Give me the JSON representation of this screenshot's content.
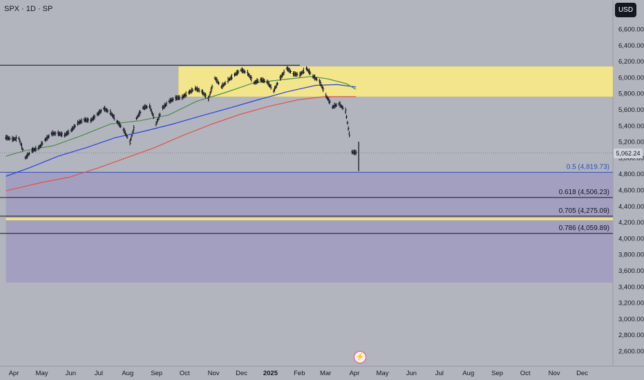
{
  "header": {
    "symbol_title": "SPX · 1D · SP"
  },
  "toolbar": {
    "currency_label": "USD"
  },
  "colors": {
    "background": "#b2b5be",
    "zone_yellow": "#f3e58c",
    "zone_purple": "#a39fc0",
    "sma_green": "#4d8c48",
    "sma_blue": "#2b3fe0",
    "sma_red": "#e2524d",
    "fib_blue": "#2f4fb5",
    "candle": "#131722"
  },
  "chart_data": {
    "type": "line",
    "title": "SPX · 1D · SP",
    "ylim": [
      2450,
      6900
    ],
    "y_ticks": [
      "6,600.00",
      "6,400.00",
      "6,200.00",
      "6,000.00",
      "5,800.00",
      "5,600.00",
      "5,400.00",
      "5,200.00",
      "5,000.00",
      "4,800.00",
      "4,600.00",
      "4,400.00",
      "4,200.00",
      "4,000.00",
      "3,800.00",
      "3,600.00",
      "3,400.00",
      "3,200.00",
      "3,000.00",
      "2,800.00",
      "2,600.00"
    ],
    "x_ticks": [
      {
        "label": "Apr",
        "bold": false,
        "date": "2024-04-01"
      },
      {
        "label": "May",
        "bold": false,
        "date": "2024-05-01"
      },
      {
        "label": "Jun",
        "bold": false,
        "date": "2024-06-01"
      },
      {
        "label": "Jul",
        "bold": false,
        "date": "2024-07-01"
      },
      {
        "label": "Aug",
        "bold": false,
        "date": "2024-08-01"
      },
      {
        "label": "Sep",
        "bold": false,
        "date": "2024-09-01"
      },
      {
        "label": "Oct",
        "bold": false,
        "date": "2024-10-01"
      },
      {
        "label": "Nov",
        "bold": false,
        "date": "2024-11-01"
      },
      {
        "label": "Dec",
        "bold": false,
        "date": "2024-12-01"
      },
      {
        "label": "2025",
        "bold": true,
        "date": "2025-01-01"
      },
      {
        "label": "Feb",
        "bold": false,
        "date": "2025-02-01"
      },
      {
        "label": "Mar",
        "bold": false,
        "date": "2025-03-01"
      },
      {
        "label": "Apr",
        "bold": false,
        "date": "2025-04-01"
      },
      {
        "label": "May",
        "bold": false,
        "date": "2025-05-01"
      },
      {
        "label": "Jun",
        "bold": false,
        "date": "2025-06-01"
      },
      {
        "label": "Jul",
        "bold": false,
        "date": "2025-07-01"
      },
      {
        "label": "Aug",
        "bold": false,
        "date": "2025-08-01"
      },
      {
        "label": "Sep",
        "bold": false,
        "date": "2025-09-01"
      },
      {
        "label": "Oct",
        "bold": false,
        "date": "2025-10-01"
      },
      {
        "label": "Nov",
        "bold": false,
        "date": "2025-11-01"
      },
      {
        "label": "Dec",
        "bold": false,
        "date": "2025-12-01"
      }
    ],
    "last_price": "5,062.24",
    "last_price_value": 5062.24,
    "resistance_line": 6150,
    "zones": [
      {
        "color": "yellow",
        "from": "2024-09-26",
        "to": "2025-12-31",
        "y_low": 5760,
        "y_high": 6135
      },
      {
        "color": "purple",
        "from": "2024-03-25",
        "to": "2025-12-31",
        "y_low": 3450,
        "y_high": 4819.73
      },
      {
        "color": "yellow",
        "from": "2024-03-25",
        "to": "2025-12-31",
        "y_low": 4225,
        "y_high": 4255
      }
    ],
    "fib_levels": [
      {
        "label": "0.5 (4,819.73)",
        "value": 4819.73,
        "color": "blue"
      },
      {
        "label": "0.618 (4,506.23)",
        "value": 4506.23,
        "color": "dark"
      },
      {
        "label": "0.705 (4,275.09)",
        "value": 4275.09,
        "color": "dark"
      },
      {
        "label": "0.786 (4,059.89)",
        "value": 4059.89,
        "color": "dark"
      }
    ],
    "closes": [
      {
        "d": "2024-03-25",
        "v": 5250
      },
      {
        "d": "2024-04-01",
        "v": 5230
      },
      {
        "d": "2024-04-08",
        "v": 5240
      },
      {
        "d": "2024-04-15",
        "v": 5000
      },
      {
        "d": "2024-04-22",
        "v": 5090
      },
      {
        "d": "2024-04-29",
        "v": 5120
      },
      {
        "d": "2024-05-06",
        "v": 5220
      },
      {
        "d": "2024-05-13",
        "v": 5300
      },
      {
        "d": "2024-05-20",
        "v": 5300
      },
      {
        "d": "2024-05-27",
        "v": 5280
      },
      {
        "d": "2024-06-03",
        "v": 5340
      },
      {
        "d": "2024-06-10",
        "v": 5430
      },
      {
        "d": "2024-06-17",
        "v": 5470
      },
      {
        "d": "2024-06-24",
        "v": 5460
      },
      {
        "d": "2024-07-01",
        "v": 5540
      },
      {
        "d": "2024-07-08",
        "v": 5610
      },
      {
        "d": "2024-07-15",
        "v": 5560
      },
      {
        "d": "2024-07-22",
        "v": 5450
      },
      {
        "d": "2024-07-29",
        "v": 5350
      },
      {
        "d": "2024-08-05",
        "v": 5190
      },
      {
        "d": "2024-08-12",
        "v": 5490
      },
      {
        "d": "2024-08-19",
        "v": 5620
      },
      {
        "d": "2024-08-26",
        "v": 5640
      },
      {
        "d": "2024-09-02",
        "v": 5420
      },
      {
        "d": "2024-09-09",
        "v": 5620
      },
      {
        "d": "2024-09-16",
        "v": 5700
      },
      {
        "d": "2024-09-23",
        "v": 5740
      },
      {
        "d": "2024-09-30",
        "v": 5750
      },
      {
        "d": "2024-10-07",
        "v": 5810
      },
      {
        "d": "2024-10-14",
        "v": 5860
      },
      {
        "d": "2024-10-21",
        "v": 5820
      },
      {
        "d": "2024-10-28",
        "v": 5730
      },
      {
        "d": "2024-11-04",
        "v": 5990
      },
      {
        "d": "2024-11-11",
        "v": 5880
      },
      {
        "d": "2024-11-18",
        "v": 5960
      },
      {
        "d": "2024-11-25",
        "v": 6030
      },
      {
        "d": "2024-12-02",
        "v": 6090
      },
      {
        "d": "2024-12-09",
        "v": 6050
      },
      {
        "d": "2024-12-16",
        "v": 5930
      },
      {
        "d": "2024-12-23",
        "v": 5970
      },
      {
        "d": "2024-12-30",
        "v": 5940
      },
      {
        "d": "2025-01-06",
        "v": 5830
      },
      {
        "d": "2025-01-13",
        "v": 5990
      },
      {
        "d": "2025-01-20",
        "v": 6110
      },
      {
        "d": "2025-01-27",
        "v": 6040
      },
      {
        "d": "2025-02-03",
        "v": 6030
      },
      {
        "d": "2025-02-10",
        "v": 6110
      },
      {
        "d": "2025-02-17",
        "v": 6010
      },
      {
        "d": "2025-02-24",
        "v": 5950
      },
      {
        "d": "2025-03-03",
        "v": 5770
      },
      {
        "d": "2025-03-10",
        "v": 5630
      },
      {
        "d": "2025-03-17",
        "v": 5670
      },
      {
        "d": "2025-03-24",
        "v": 5580
      },
      {
        "d": "2025-03-31",
        "v": 5070
      },
      {
        "d": "2025-04-04",
        "v": 5062.24
      }
    ],
    "sma_green": [
      {
        "d": "2024-03-25",
        "v": 5020
      },
      {
        "d": "2024-04-15",
        "v": 5090
      },
      {
        "d": "2024-05-15",
        "v": 5150
      },
      {
        "d": "2024-06-15",
        "v": 5280
      },
      {
        "d": "2024-07-15",
        "v": 5420
      },
      {
        "d": "2024-08-15",
        "v": 5460
      },
      {
        "d": "2024-09-15",
        "v": 5530
      },
      {
        "d": "2024-10-15",
        "v": 5700
      },
      {
        "d": "2024-11-15",
        "v": 5810
      },
      {
        "d": "2024-12-15",
        "v": 5930
      },
      {
        "d": "2025-01-15",
        "v": 5970
      },
      {
        "d": "2025-02-15",
        "v": 6010
      },
      {
        "d": "2025-03-05",
        "v": 5980
      },
      {
        "d": "2025-03-25",
        "v": 5920
      },
      {
        "d": "2025-04-04",
        "v": 5850
      }
    ],
    "sma_blue": [
      {
        "d": "2024-03-25",
        "v": 4770
      },
      {
        "d": "2024-04-20",
        "v": 4880
      },
      {
        "d": "2024-05-20",
        "v": 5020
      },
      {
        "d": "2024-06-20",
        "v": 5130
      },
      {
        "d": "2024-07-20",
        "v": 5250
      },
      {
        "d": "2024-08-20",
        "v": 5330
      },
      {
        "d": "2024-09-20",
        "v": 5420
      },
      {
        "d": "2024-10-20",
        "v": 5520
      },
      {
        "d": "2024-11-20",
        "v": 5620
      },
      {
        "d": "2024-12-20",
        "v": 5720
      },
      {
        "d": "2025-01-20",
        "v": 5820
      },
      {
        "d": "2025-02-20",
        "v": 5900
      },
      {
        "d": "2025-03-15",
        "v": 5910
      },
      {
        "d": "2025-04-04",
        "v": 5880
      }
    ],
    "sma_red": [
      {
        "d": "2024-03-25",
        "v": 4590
      },
      {
        "d": "2024-05-01",
        "v": 4690
      },
      {
        "d": "2024-06-01",
        "v": 4760
      },
      {
        "d": "2024-07-01",
        "v": 4870
      },
      {
        "d": "2024-08-01",
        "v": 5000
      },
      {
        "d": "2024-09-01",
        "v": 5130
      },
      {
        "d": "2024-10-01",
        "v": 5280
      },
      {
        "d": "2024-11-01",
        "v": 5420
      },
      {
        "d": "2024-12-01",
        "v": 5540
      },
      {
        "d": "2025-01-01",
        "v": 5640
      },
      {
        "d": "2025-02-01",
        "v": 5720
      },
      {
        "d": "2025-03-01",
        "v": 5760
      },
      {
        "d": "2025-04-04",
        "v": 5760
      }
    ]
  }
}
